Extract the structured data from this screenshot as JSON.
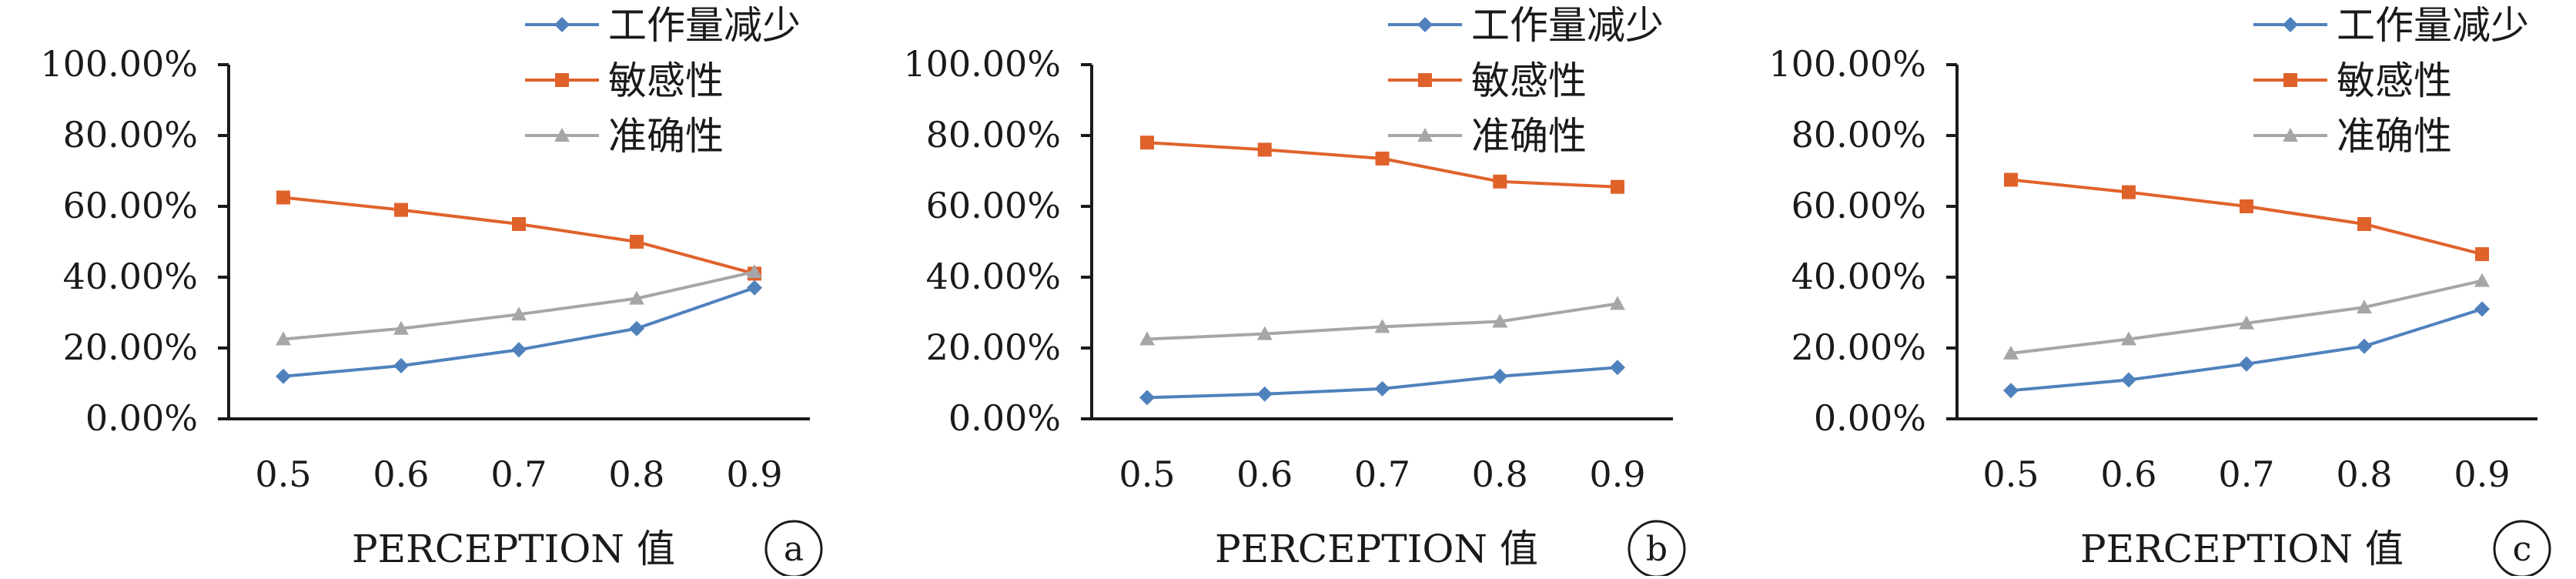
{
  "chart_data": [
    {
      "type": "line",
      "panel_label": "a",
      "xlabel": "PERCEPTION 值",
      "ylabel": "",
      "title": "",
      "categories": [
        "0.5",
        "0.6",
        "0.7",
        "0.8",
        "0.9"
      ],
      "yticks": [
        "0.00%",
        "20.00%",
        "40.00%",
        "60.00%",
        "80.00%",
        "100.00%"
      ],
      "ylim": [
        0,
        100
      ],
      "grid": false,
      "legend_position": "top-right",
      "series": [
        {
          "name": "工作量减少",
          "values": [
            12.0,
            15.0,
            19.5,
            25.5,
            37.0
          ],
          "color": "#4f81bd",
          "marker": "diamond"
        },
        {
          "name": "敏感性",
          "values": [
            62.5,
            59.0,
            55.0,
            50.0,
            41.0
          ],
          "color": "#e0622b",
          "marker": "square"
        },
        {
          "name": "准确性",
          "values": [
            22.5,
            25.5,
            29.5,
            34.0,
            41.5
          ],
          "color": "#a6a6a6",
          "marker": "triangle"
        }
      ]
    },
    {
      "type": "line",
      "panel_label": "b",
      "xlabel": "PERCEPTION 值",
      "ylabel": "",
      "title": "",
      "categories": [
        "0.5",
        "0.6",
        "0.7",
        "0.8",
        "0.9"
      ],
      "yticks": [
        "0.00%",
        "20.00%",
        "40.00%",
        "60.00%",
        "80.00%",
        "100.00%"
      ],
      "ylim": [
        0,
        100
      ],
      "grid": false,
      "legend_position": "top-right",
      "series": [
        {
          "name": "工作量减少",
          "values": [
            6.0,
            7.0,
            8.5,
            12.0,
            14.5
          ],
          "color": "#4f81bd",
          "marker": "diamond"
        },
        {
          "name": "敏感性",
          "values": [
            78.0,
            76.0,
            73.5,
            67.0,
            65.5
          ],
          "color": "#e0622b",
          "marker": "square"
        },
        {
          "name": "准确性",
          "values": [
            22.5,
            24.0,
            26.0,
            27.5,
            32.5
          ],
          "color": "#a6a6a6",
          "marker": "triangle"
        }
      ]
    },
    {
      "type": "line",
      "panel_label": "c",
      "xlabel": "PERCEPTION 值",
      "ylabel": "",
      "title": "",
      "categories": [
        "0.5",
        "0.6",
        "0.7",
        "0.8",
        "0.9"
      ],
      "yticks": [
        "0.00%",
        "20.00%",
        "40.00%",
        "60.00%",
        "80.00%",
        "100.00%"
      ],
      "ylim": [
        0,
        100
      ],
      "grid": false,
      "legend_position": "top-right",
      "series": [
        {
          "name": "工作量减少",
          "values": [
            8.0,
            11.0,
            15.5,
            20.5,
            31.0
          ],
          "color": "#4f81bd",
          "marker": "diamond"
        },
        {
          "name": "敏感性",
          "values": [
            67.5,
            64.0,
            60.0,
            55.0,
            46.5
          ],
          "color": "#e0622b",
          "marker": "square"
        },
        {
          "name": "准确性",
          "values": [
            18.5,
            22.5,
            27.0,
            31.5,
            39.0
          ],
          "color": "#a6a6a6",
          "marker": "triangle"
        }
      ]
    }
  ]
}
